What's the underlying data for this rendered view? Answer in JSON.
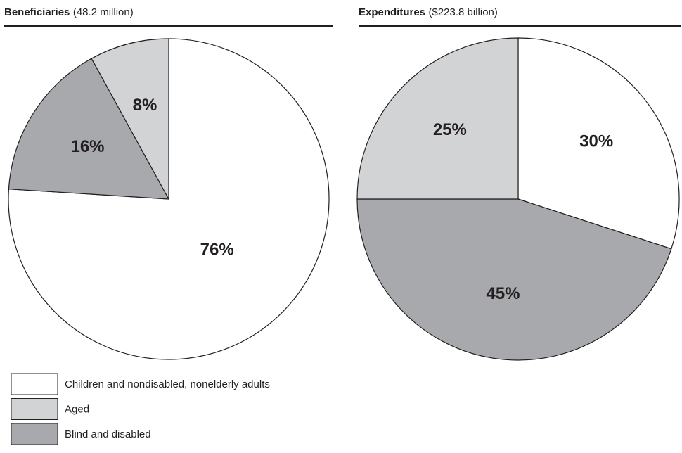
{
  "chart_data": [
    {
      "type": "pie",
      "title": "Beneficiaries",
      "subtitle": "(48.2 million)",
      "categories": [
        "Children and nondisabled, nonelderly adults",
        "Aged",
        "Blind and disabled"
      ],
      "values": [
        76,
        8,
        16
      ],
      "value_labels": [
        "76%",
        "8%",
        "16%"
      ],
      "colors": [
        "#ffffff",
        "#d1d3d4",
        "#a7a9ac"
      ]
    },
    {
      "type": "pie",
      "title": "Expenditures",
      "subtitle": "($223.8 billion)",
      "values": [
        30,
        25,
        45
      ],
      "value_labels": [
        "30%",
        "25%",
        "45%"
      ],
      "colors": [
        "#ffffff",
        "#d1d3d4",
        "#a7a9ac"
      ]
    }
  ]
}
